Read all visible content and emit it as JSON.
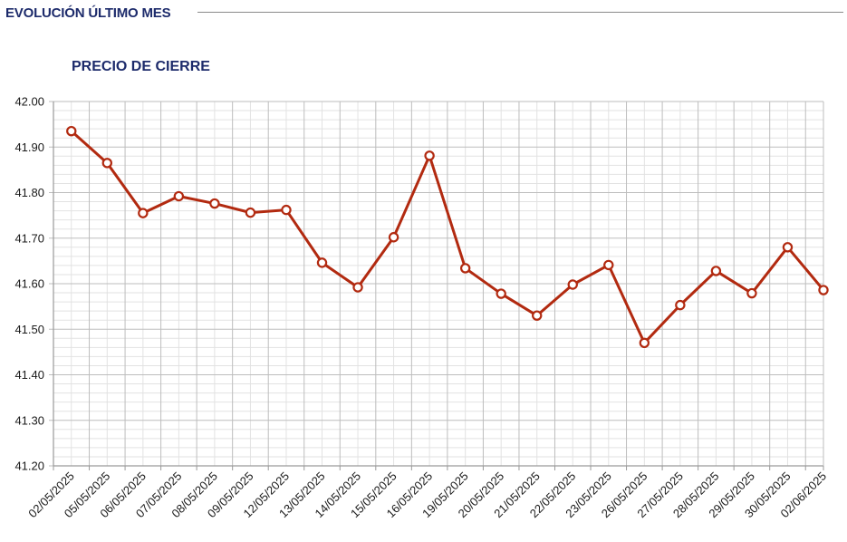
{
  "header": {
    "title": "EVOLUCIÓN ÚLTIMO MES"
  },
  "chart_data": {
    "type": "line",
    "title": "PRECIO DE CIERRE",
    "xlabel": "",
    "ylabel": "",
    "ylim": [
      41.2,
      42.0
    ],
    "yticks": [
      "41.20",
      "41.30",
      "41.40",
      "41.50",
      "41.60",
      "41.70",
      "41.80",
      "41.90",
      "42.00"
    ],
    "grid": true,
    "legend": "none",
    "categories": [
      "02/05/2025",
      "05/05/2025",
      "06/05/2025",
      "07/05/2025",
      "08/05/2025",
      "09/05/2025",
      "12/05/2025",
      "13/05/2025",
      "14/05/2025",
      "15/05/2025",
      "16/05/2025",
      "19/05/2025",
      "20/05/2025",
      "21/05/2025",
      "22/05/2025",
      "23/05/2025",
      "26/05/2025",
      "27/05/2025",
      "28/05/2025",
      "29/05/2025",
      "30/05/2025",
      "02/06/2025"
    ],
    "series": [
      {
        "values": [
          41.935,
          41.865,
          41.755,
          41.792,
          41.776,
          41.756,
          41.762,
          41.646,
          41.592,
          41.702,
          41.881,
          41.634,
          41.578,
          41.53,
          41.598,
          41.641,
          41.47,
          41.553,
          41.628,
          41.579,
          41.68,
          41.586
        ],
        "color": "#b22a10"
      }
    ]
  }
}
